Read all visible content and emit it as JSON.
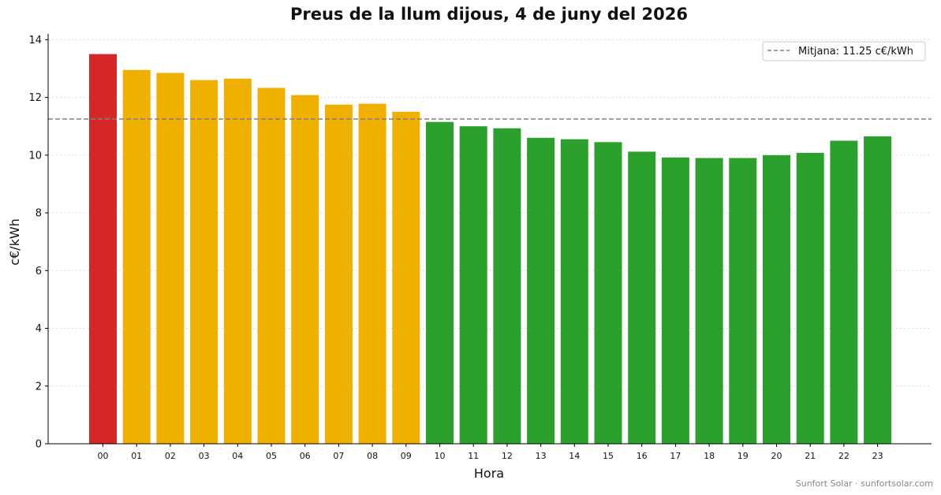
{
  "chart_data": {
    "type": "bar",
    "title": "Preus de la llum dijous, 4 de juny del 2026",
    "xlabel": "Hora",
    "ylabel": "c€/kWh",
    "ylim": [
      0,
      14.2
    ],
    "yticks": [
      0,
      2,
      4,
      6,
      8,
      10,
      12,
      14
    ],
    "categories": [
      "00",
      "01",
      "02",
      "03",
      "04",
      "05",
      "06",
      "07",
      "08",
      "09",
      "10",
      "11",
      "12",
      "13",
      "14",
      "15",
      "16",
      "17",
      "18",
      "19",
      "20",
      "21",
      "22",
      "23"
    ],
    "values": [
      13.5,
      12.95,
      12.85,
      12.6,
      12.65,
      12.33,
      12.08,
      11.75,
      11.78,
      11.5,
      11.15,
      11.0,
      10.93,
      10.6,
      10.55,
      10.45,
      10.12,
      9.92,
      9.9,
      9.9,
      10.0,
      10.08,
      10.5,
      10.65
    ],
    "bar_colors": [
      "#d62728",
      "#f0b000",
      "#f0b000",
      "#f0b000",
      "#f0b000",
      "#f0b000",
      "#f0b000",
      "#f0b000",
      "#f0b000",
      "#f0b000",
      "#2ca02c",
      "#2ca02c",
      "#2ca02c",
      "#2ca02c",
      "#2ca02c",
      "#2ca02c",
      "#2ca02c",
      "#2ca02c",
      "#2ca02c",
      "#2ca02c",
      "#2ca02c",
      "#2ca02c",
      "#2ca02c",
      "#2ca02c"
    ],
    "average": {
      "value": 11.25,
      "label": "Mitjana: 11.25 c€/kWh",
      "color": "#808080"
    },
    "grid": "y-dotted",
    "legend_position": "top-right"
  },
  "credit": "Sunfort Solar · sunfortsolar.com"
}
